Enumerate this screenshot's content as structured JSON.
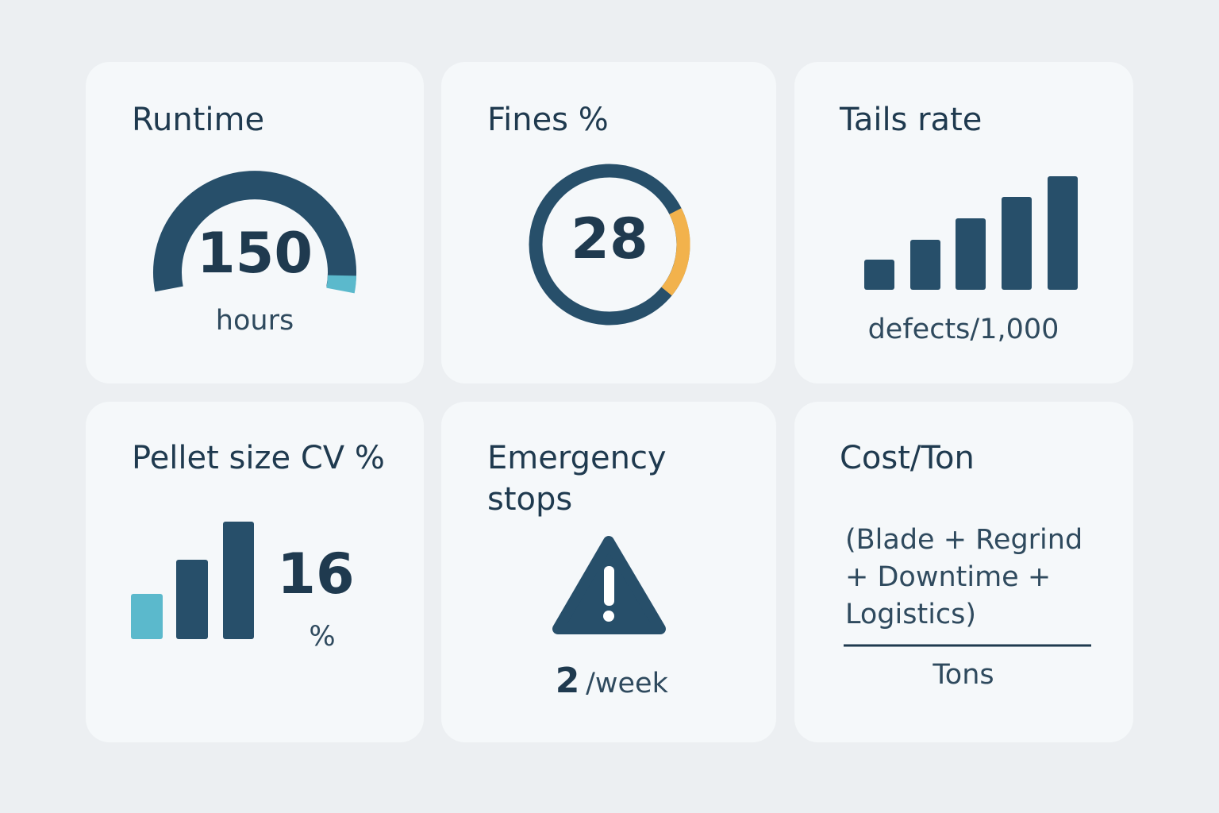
{
  "cards": [
    {
      "title": "Runtime",
      "value": 150,
      "unit": "hours"
    },
    {
      "title": "Fines %",
      "value": 28
    },
    {
      "title": "Tails rate",
      "unit": "defects/1,000"
    },
    {
      "title": "Pellet size CV %",
      "value": 16,
      "unit": "%"
    },
    {
      "title_lines": [
        "Emergency",
        "stops"
      ],
      "value": 2,
      "unit": "/week"
    },
    {
      "title": "Cost/Ton",
      "numerator_lines": [
        "(Blade + Regrind",
        "+ Downtime +",
        "Logistics)"
      ],
      "denominator": "Tons"
    }
  ]
}
